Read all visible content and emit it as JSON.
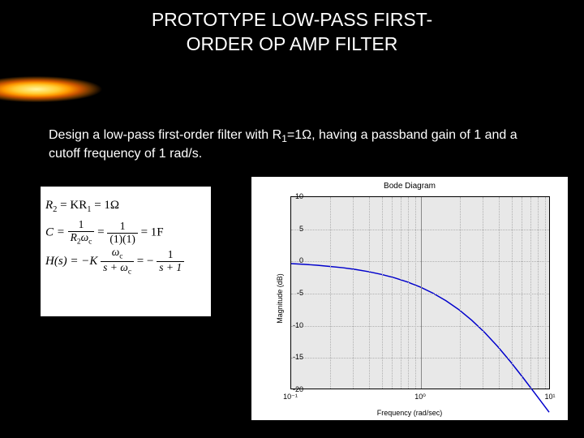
{
  "title_line1": "PROTOTYPE LOW-PASS FIRST-",
  "title_line2": "ORDER OP AMP FILTER",
  "description_pre": "Design a low-pass first-order filter with R",
  "description_sub": "1",
  "description_post": "=1Ω, having a passband gain of 1 and a cutoff frequency of 1 rad/s.",
  "formulas": {
    "r2_lhs": "R",
    "r2_sub": "2",
    "r2_mid": " = KR",
    "r2_sub2": "1",
    "r2_rhs": " = 1Ω",
    "c_lhs": "C = ",
    "c_frac1_num": "1",
    "c_frac1_den_a": "R",
    "c_frac1_den_sub": "2",
    "c_frac1_den_b": "ω",
    "c_frac1_den_sub2": "c",
    "c_eq": " = ",
    "c_frac2_num": "1",
    "c_frac2_den": "(1)(1)",
    "c_rhs": " = 1F",
    "h_lhs": "H(s) = −K",
    "h_frac1_num_a": "ω",
    "h_frac1_num_sub": "c",
    "h_frac1_den_a": "s + ω",
    "h_frac1_den_sub": "c",
    "h_eq": " = − ",
    "h_frac2_num": "1",
    "h_frac2_den": "s + 1"
  },
  "chart": {
    "title": "Bode Diagram",
    "ylabel": "Magnitude (dB)",
    "xlabel": "Frequency (rad/sec)",
    "ylim": [
      -20,
      10
    ],
    "yticks": [
      10,
      5,
      0,
      -5,
      -10,
      -15,
      -20
    ],
    "xlim_exp": [
      -1,
      1
    ],
    "xticks_exp": [
      -1,
      0,
      1
    ],
    "xticks_labels": [
      "10⁻¹",
      "10⁰",
      "10¹"
    ],
    "plot_bg": "#e8e8e8",
    "grid_color": "#b0b0b0",
    "line_color": "#0000cc",
    "line_width": 1.5,
    "log_minor_fracs": [
      0.301,
      0.477,
      0.602,
      0.699,
      0.778,
      0.845,
      0.903,
      0.954
    ],
    "curve_points": [
      [
        0.0,
        -0.043
      ],
      [
        0.05,
        -0.054
      ],
      [
        0.1,
        -0.068
      ],
      [
        0.15,
        -0.086
      ],
      [
        0.2,
        -0.107
      ],
      [
        0.25,
        -0.135
      ],
      [
        0.3,
        -0.169
      ],
      [
        0.35,
        -0.211
      ],
      [
        0.4,
        -0.264
      ],
      [
        0.45,
        -0.329
      ],
      [
        0.5,
        -0.409
      ],
      [
        0.55,
        -0.506
      ],
      [
        0.6,
        -0.624
      ],
      [
        0.65,
        -0.764
      ],
      [
        0.7,
        -0.93
      ],
      [
        0.75,
        -1.122
      ],
      [
        0.8,
        -1.339
      ],
      [
        0.85,
        -1.579
      ],
      [
        0.9,
        -1.836
      ],
      [
        0.95,
        -2.102
      ],
      [
        1.0,
        -2.37
      ]
    ]
  },
  "colors": {
    "background": "#000000",
    "text": "#ffffff",
    "formula_bg": "#ffffff",
    "chart_bg": "#ffffff"
  }
}
